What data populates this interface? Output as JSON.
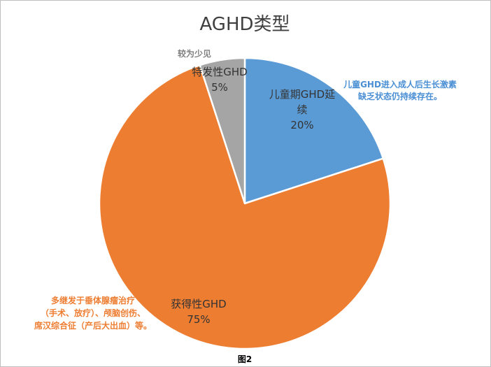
{
  "chart_data": {
    "type": "pie",
    "title": "AGHD类型",
    "slices": [
      {
        "label": "儿童期GHD延续",
        "label_lines": [
          "儿童期GHD延",
          "续"
        ],
        "value": 20,
        "value_label": "20%",
        "color": "#5b9bd5"
      },
      {
        "label": "获得性GHD",
        "label_lines": [
          "获得性GHD"
        ],
        "value": 75,
        "value_label": "75%",
        "color": "#ed7d31"
      },
      {
        "label": "特发性GHD",
        "label_lines": [
          "特发性GHD"
        ],
        "value": 5,
        "value_label": "5%",
        "color": "#a5a5a5"
      }
    ]
  },
  "annotations": {
    "childhood": [
      "儿童GHD进入成人后生长激素",
      "缺乏状态仍持续存在。"
    ],
    "acquired": [
      "多继发于垂体腺瘤治疗",
      "（手术、放疗）、颅脑创伤、",
      "席汉综合征（产后大出血）等。"
    ],
    "idiopathic": "较为少见"
  },
  "caption": "图2"
}
